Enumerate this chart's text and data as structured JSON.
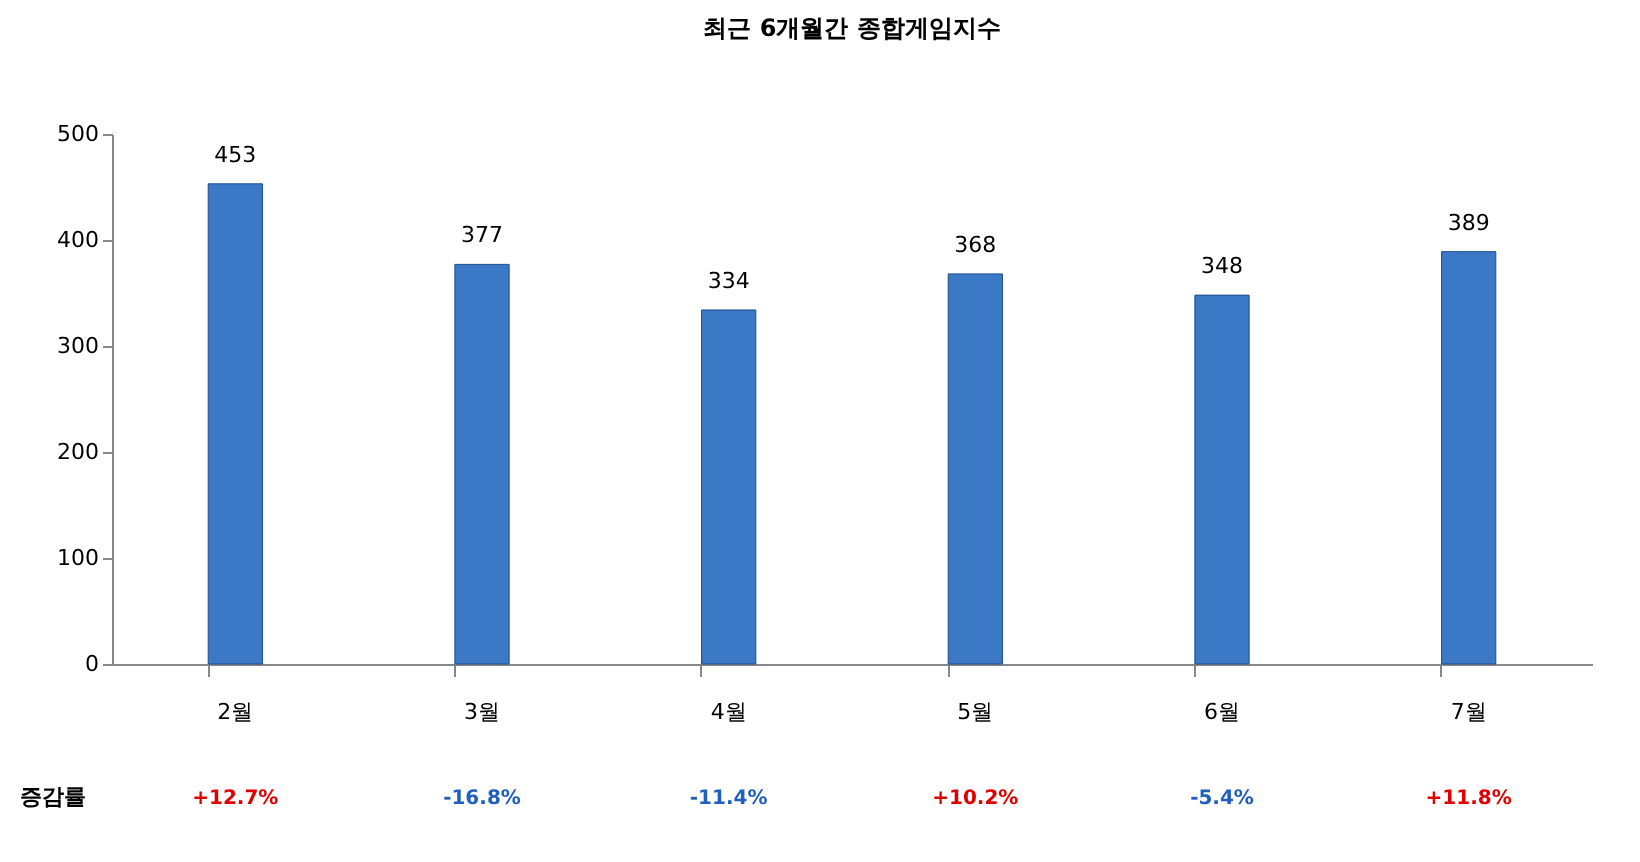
{
  "chart_data": {
    "type": "bar",
    "title": "최근 6개월간 종합게임지수",
    "categories": [
      "2월",
      "3월",
      "4월",
      "5월",
      "6월",
      "7월"
    ],
    "series": [
      {
        "color": "#3b78c6",
        "values": [
          453,
          377,
          334,
          368,
          348,
          389
        ]
      }
    ],
    "ylim": [
      0,
      500
    ],
    "yticks": [
      0,
      100,
      200,
      300,
      400,
      500
    ],
    "grid": false,
    "data_labels": true,
    "annotations": [
      "증감률",
      "+12.7%",
      "-16.8%",
      "-11.4%",
      "+10.2%",
      "-5.4%",
      "+11.8%"
    ]
  }
}
